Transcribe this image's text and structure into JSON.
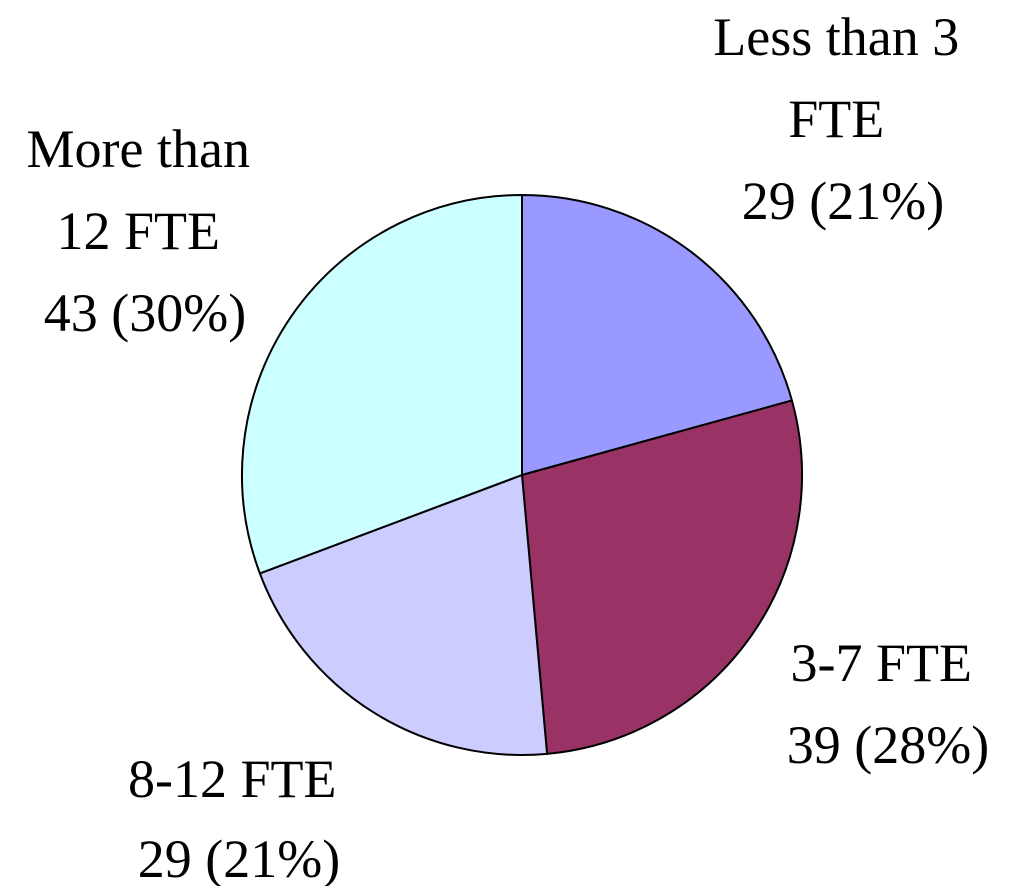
{
  "chart_data": {
    "type": "pie",
    "start_angle_deg": 0,
    "direction": "clockwise",
    "slices": [
      {
        "name_lines": [
          "Less than 3",
          "FTE"
        ],
        "value": 29,
        "value_label": "29 (21%)",
        "color": "#9999FF"
      },
      {
        "name_lines": [
          "3-7 FTE"
        ],
        "value": 39,
        "value_label": "39 (28%)",
        "color": "#993366"
      },
      {
        "name_lines": [
          "8-12 FTE"
        ],
        "value": 29,
        "value_label": "29 (21%)",
        "color": "#CCCCFF"
      },
      {
        "name_lines": [
          "More than",
          "12 FTE"
        ],
        "value": 43,
        "value_label": "43 (30%)",
        "color": "#CCFFFF"
      }
    ]
  }
}
